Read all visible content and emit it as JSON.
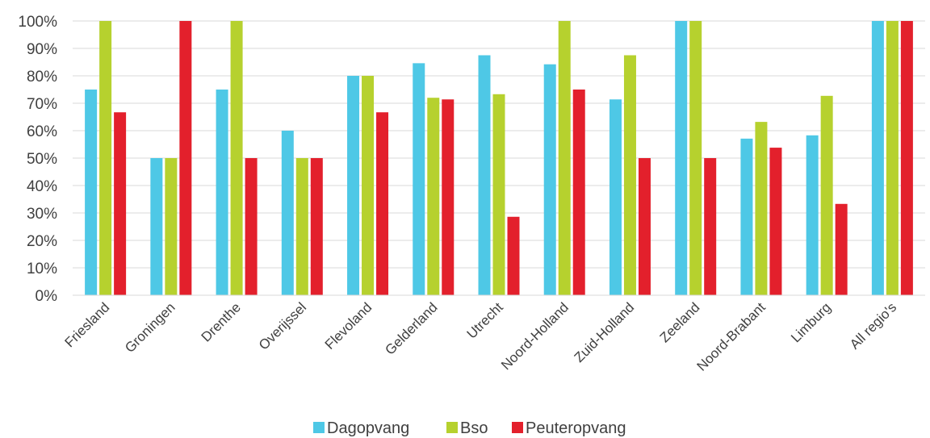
{
  "chart_data": {
    "type": "bar",
    "title": "",
    "xlabel": "",
    "ylabel": "",
    "ylim": [
      0,
      100
    ],
    "y_ticks": [
      "0%",
      "10%",
      "20%",
      "30%",
      "40%",
      "50%",
      "60%",
      "70%",
      "80%",
      "90%",
      "100%"
    ],
    "grid": true,
    "legend_position": "bottom",
    "categories": [
      "Friesland",
      "Groningen",
      "Drenthe",
      "Overijssel",
      "Flevoland",
      "Gelderland",
      "Utrecht",
      "Noord-Holland",
      "Zuid-Holland",
      "Zeeland",
      "Noord-Brabant",
      "Limburg",
      "All regio's"
    ],
    "series": [
      {
        "name": "Dagopvang",
        "color": "#4ec8e6",
        "values": [
          75,
          50,
          75,
          60,
          80,
          84.6,
          87.5,
          84.2,
          71.4,
          100,
          57.1,
          58.3,
          100
        ]
      },
      {
        "name": "Bso",
        "color": "#b6d12e",
        "values": [
          100,
          50,
          100,
          50,
          80,
          72,
          73.3,
          100,
          87.5,
          100,
          63.2,
          72.7,
          100
        ]
      },
      {
        "name": "Peuteropvang",
        "color": "#e3202c",
        "values": [
          66.7,
          100,
          50,
          50,
          66.7,
          71.4,
          28.6,
          75,
          50,
          50,
          53.8,
          33.3,
          100
        ]
      }
    ]
  }
}
